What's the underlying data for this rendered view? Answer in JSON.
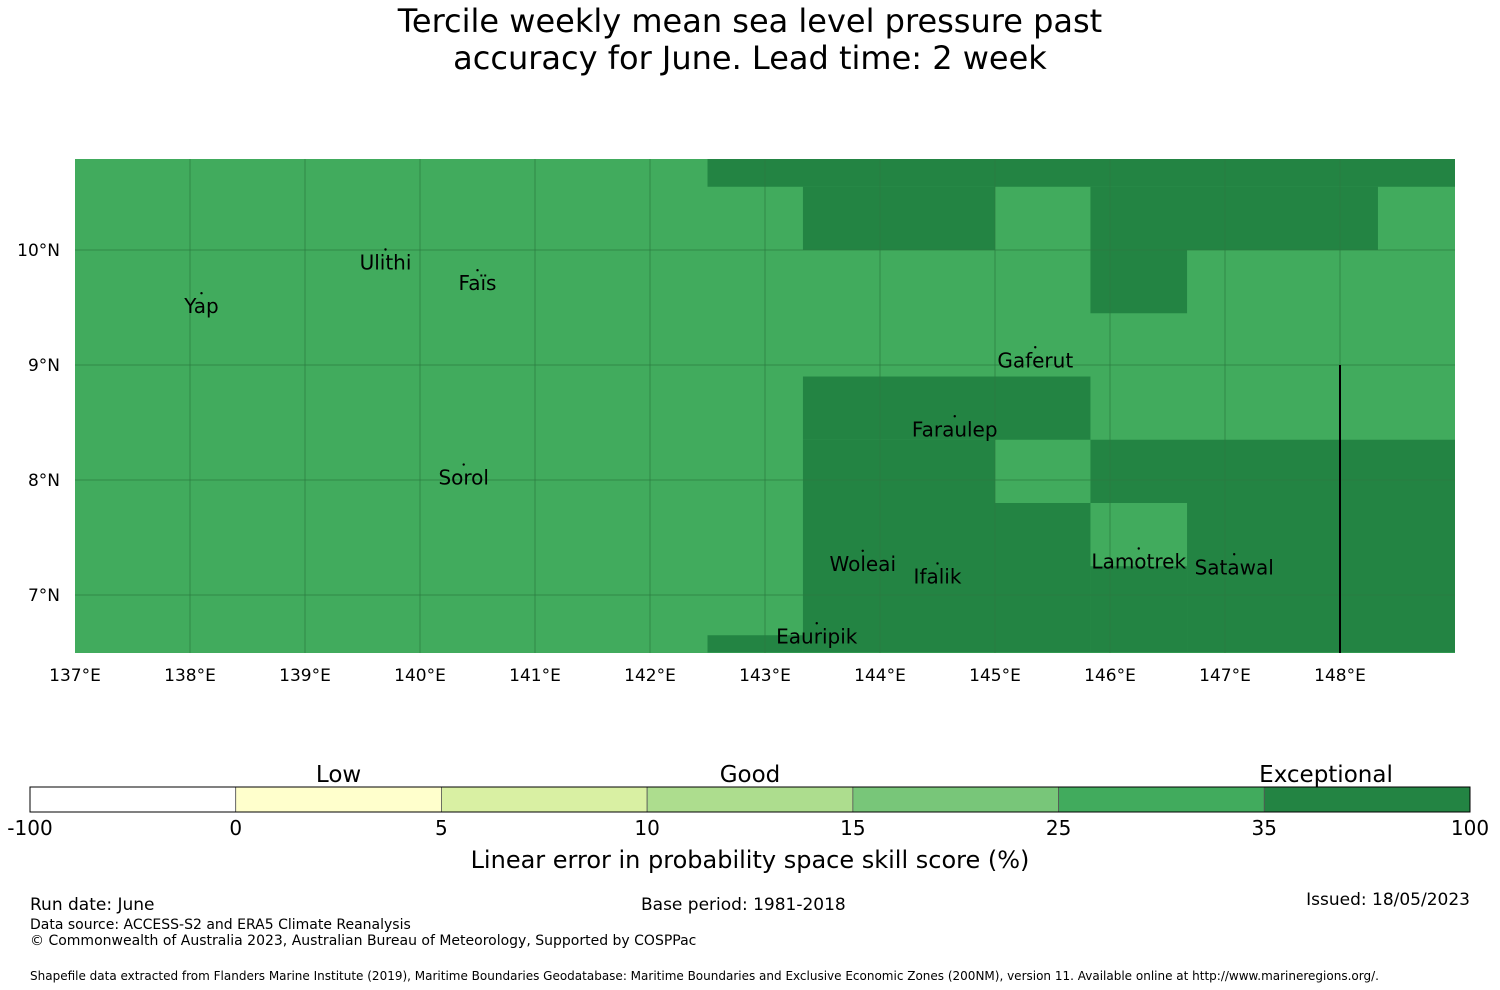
{
  "title": {
    "line1": "Tercile weekly mean sea level pressure past",
    "line2": "accuracy for June. Lead time: 2 week"
  },
  "map": {
    "lon_range": [
      137,
      149
    ],
    "lat_range": [
      6.5,
      10.8
    ],
    "lon_ticks": [
      137,
      138,
      139,
      140,
      141,
      142,
      143,
      144,
      145,
      146,
      147,
      148
    ],
    "lat_ticks": [
      10,
      9,
      8,
      7
    ],
    "lon_tick_labels": [
      "137°E",
      "138°E",
      "139°E",
      "140°E",
      "141°E",
      "142°E",
      "143°E",
      "144°E",
      "145°E",
      "146°E",
      "147°E",
      "148°E"
    ],
    "lat_tick_labels": [
      "10°N",
      "9°N",
      "8°N",
      "7°N"
    ],
    "colors": {
      "background": "#41ab5d",
      "exceptional": "#238443",
      "gridline": "#2b7a40",
      "border": "#000000"
    },
    "exceptional_cells": [
      {
        "lon": [
          142.5,
          149.0
        ],
        "lat": [
          10.55,
          10.8
        ]
      },
      {
        "lon": [
          143.33,
          145.0
        ],
        "lat": [
          10.0,
          10.55
        ]
      },
      {
        "lon": [
          145.83,
          148.33
        ],
        "lat": [
          10.0,
          10.55
        ]
      },
      {
        "lon": [
          145.83,
          146.67
        ],
        "lat": [
          9.45,
          10.0
        ]
      },
      {
        "lon": [
          143.33,
          145.83
        ],
        "lat": [
          8.35,
          8.9
        ]
      },
      {
        "lon": [
          143.33,
          145.0
        ],
        "lat": [
          6.5,
          8.35
        ]
      },
      {
        "lon": [
          145.0,
          145.83
        ],
        "lat": [
          6.5,
          7.8
        ]
      },
      {
        "lon": [
          145.83,
          149.0
        ],
        "lat": [
          7.8,
          8.35
        ]
      },
      {
        "lon": [
          145.83,
          146.67
        ],
        "lat": [
          6.5,
          7.25
        ]
      },
      {
        "lon": [
          146.67,
          149.0
        ],
        "lat": [
          6.5,
          7.8
        ]
      },
      {
        "lon": [
          142.5,
          143.33
        ],
        "lat": [
          6.5,
          6.65
        ]
      }
    ],
    "eez_boundary": {
      "lon": 148.0,
      "lat": [
        6.5,
        9.0
      ]
    },
    "places": [
      {
        "name": "Yap",
        "lon": 138.1,
        "lat": 9.52
      },
      {
        "name": "Ulithi",
        "lon": 139.7,
        "lat": 9.9
      },
      {
        "name": "Faïs",
        "lon": 140.5,
        "lat": 9.72
      },
      {
        "name": "Gaferut",
        "lon": 145.35,
        "lat": 9.05
      },
      {
        "name": "Faraulep",
        "lon": 144.65,
        "lat": 8.45
      },
      {
        "name": "Sorol",
        "lon": 140.38,
        "lat": 8.03
      },
      {
        "name": "Woleai",
        "lon": 143.85,
        "lat": 7.28
      },
      {
        "name": "Ifalik",
        "lon": 144.5,
        "lat": 7.17
      },
      {
        "name": "Lamotrek",
        "lon": 146.25,
        "lat": 7.3
      },
      {
        "name": "Satawal",
        "lon": 147.08,
        "lat": 7.25
      },
      {
        "name": "Eauripik",
        "lon": 143.45,
        "lat": 6.65
      }
    ]
  },
  "legend": {
    "category_labels": [
      "Low",
      "Good",
      "Exceptional"
    ],
    "bins": [
      {
        "from": -100,
        "to": 0,
        "color": "#ffffff"
      },
      {
        "from": 0,
        "to": 5,
        "color": "#ffffcc"
      },
      {
        "from": 5,
        "to": 10,
        "color": "#d9f0a3"
      },
      {
        "from": 10,
        "to": 15,
        "color": "#addd8e"
      },
      {
        "from": 15,
        "to": 25,
        "color": "#78c679"
      },
      {
        "from": 25,
        "to": 35,
        "color": "#41ab5d"
      },
      {
        "from": 35,
        "to": 100,
        "color": "#238443"
      }
    ],
    "tick_labels": [
      "-100",
      "0",
      "5",
      "10",
      "15",
      "25",
      "35",
      "100"
    ],
    "axis_label": "Linear error in probability space skill score (%)"
  },
  "footer": {
    "run_date": "Run date: June",
    "base_period": "Base period: 1981-2018",
    "issued": "Issued: 18/05/2023",
    "data_source": "Data source: ACCESS-S2 and ERA5 Climate Reanalysis",
    "copyright": "© Commonwealth of Australia 2023, Australian Bureau of Meteorology, Supported by COSPPac",
    "shapefile": "Shapefile data extracted from Flanders Marine Institute (2019), Maritime Boundaries Geodatabase: Maritime Boundaries and Exclusive Economic Zones (200NM), version 11. Available online at http://www.marineregions.org/."
  }
}
